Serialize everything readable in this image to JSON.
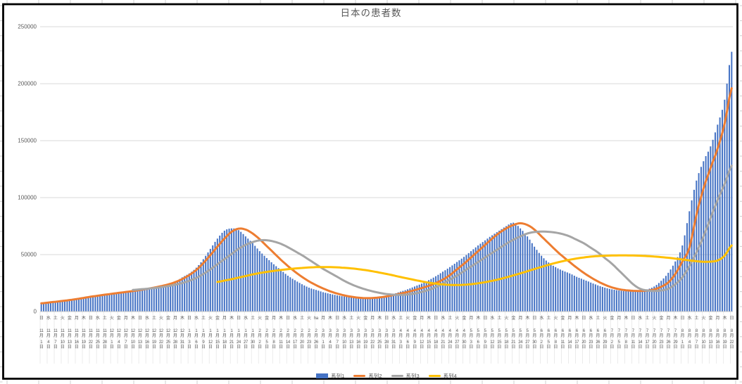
{
  "chart_data": {
    "type": "combo",
    "title": "日本の患者数",
    "grid": "horizontal",
    "legend_position": "bottom",
    "y_axis": {
      "min": 0,
      "max": 250000,
      "step": 50000,
      "tick_labels": [
        "0",
        "50000",
        "100000",
        "150000",
        "200000",
        "250000"
      ]
    },
    "x_axis": {
      "note_interval_days": 3,
      "month_suffix": "月",
      "day_suffix": "日",
      "labels": [
        [
          "日",
          "11",
          "1"
        ],
        [
          "水",
          "11",
          "4"
        ],
        [
          "土",
          "11",
          "7"
        ],
        [
          "火",
          "11",
          "10"
        ],
        [
          "金",
          "11",
          "13"
        ],
        [
          "月",
          "11",
          "16"
        ],
        [
          "木",
          "11",
          "19"
        ],
        [
          "日",
          "11",
          "22"
        ],
        [
          "水",
          "11",
          "25"
        ],
        [
          "土",
          "11",
          "28"
        ],
        [
          "火",
          "12",
          "1"
        ],
        [
          "金",
          "12",
          "4"
        ],
        [
          "月",
          "12",
          "7"
        ],
        [
          "木",
          "12",
          "10"
        ],
        [
          "日",
          "12",
          "13"
        ],
        [
          "水",
          "12",
          "16"
        ],
        [
          "土",
          "12",
          "19"
        ],
        [
          "火",
          "12",
          "22"
        ],
        [
          "金",
          "12",
          "25"
        ],
        [
          "月",
          "12",
          "28"
        ],
        [
          "木",
          "12",
          "31"
        ],
        [
          "日",
          "1",
          "3"
        ],
        [
          "水",
          "1",
          "6"
        ],
        [
          "土",
          "1",
          "9"
        ],
        [
          "火",
          "1",
          "12"
        ],
        [
          "金",
          "1",
          "15"
        ],
        [
          "月",
          "1",
          "18"
        ],
        [
          "木",
          "1",
          "21"
        ],
        [
          "日",
          "1",
          "24"
        ],
        [
          "水",
          "1",
          "27"
        ],
        [
          "土",
          "1",
          "30"
        ],
        [
          "火",
          "2",
          "2"
        ],
        [
          "金",
          "2",
          "5"
        ],
        [
          "月",
          "2",
          "8"
        ],
        [
          "木",
          "2",
          "11"
        ],
        [
          "日",
          "2",
          "14"
        ],
        [
          "水",
          "2",
          "17"
        ],
        [
          "土",
          "2",
          "20"
        ],
        [
          "火",
          "2",
          "23"
        ],
        [
          "ha",
          "2",
          "26"
        ],
        [
          "月",
          "3",
          "1"
        ],
        [
          "木",
          "3",
          "4"
        ],
        [
          "日",
          "3",
          "7"
        ],
        [
          "水",
          "3",
          "10"
        ],
        [
          "土",
          "3",
          "13"
        ],
        [
          "火",
          "3",
          "16"
        ],
        [
          "金",
          "3",
          "19"
        ],
        [
          "月",
          "3",
          "22"
        ],
        [
          "木",
          "3",
          "25"
        ],
        [
          "日",
          "3",
          "28"
        ],
        [
          "水",
          "3",
          "31"
        ],
        [
          "土",
          "4",
          "3"
        ],
        [
          "火",
          "4",
          "6"
        ],
        [
          "金",
          "4",
          "9"
        ],
        [
          "月",
          "4",
          "12"
        ],
        [
          "木",
          "4",
          "15"
        ],
        [
          "日",
          "4",
          "18"
        ],
        [
          "水",
          "4",
          "21"
        ],
        [
          "土",
          "4",
          "24"
        ],
        [
          "火",
          "4",
          "27"
        ],
        [
          "金",
          "4",
          "30"
        ],
        [
          "月",
          "5",
          "3"
        ],
        [
          "木",
          "5",
          "6"
        ],
        [
          "日",
          "5",
          "9"
        ],
        [
          "水",
          "5",
          "12"
        ],
        [
          "土",
          "5",
          "15"
        ],
        [
          "火",
          "5",
          "18"
        ],
        [
          "金",
          "5",
          "21"
        ],
        [
          "月",
          "5",
          "24"
        ],
        [
          "木",
          "5",
          "27"
        ],
        [
          "日",
          "5",
          "30"
        ],
        [
          "水",
          "6",
          "2"
        ],
        [
          "土",
          "6",
          "5"
        ],
        [
          "火",
          "6",
          "8"
        ],
        [
          "金",
          "6",
          "11"
        ],
        [
          "月",
          "6",
          "14"
        ],
        [
          "木",
          "6",
          "17"
        ],
        [
          "日",
          "6",
          "20"
        ],
        [
          "水",
          "6",
          "23"
        ],
        [
          "土",
          "6",
          "26"
        ],
        [
          "火",
          "6",
          "29"
        ],
        [
          "金",
          "7",
          "2"
        ],
        [
          "月",
          "7",
          "5"
        ],
        [
          "木",
          "7",
          "8"
        ],
        [
          "日",
          "7",
          "11"
        ],
        [
          "水",
          "7",
          "14"
        ],
        [
          "土",
          "7",
          "17"
        ],
        [
          "火",
          "7",
          "20"
        ],
        [
          "金",
          "7",
          "23"
        ],
        [
          "月",
          "7",
          "26"
        ],
        [
          "木",
          "7",
          "29"
        ],
        [
          "日",
          "8",
          "1"
        ],
        [
          "水",
          "8",
          "4"
        ],
        [
          "土",
          "8",
          "7"
        ],
        [
          "火",
          "8",
          "10"
        ],
        [
          "金",
          "8",
          "13"
        ],
        [
          "月",
          "8",
          "16"
        ],
        [
          "木",
          "8",
          "19"
        ],
        [
          "日",
          "8",
          "22"
        ]
      ]
    },
    "series": [
      {
        "name": "系列1",
        "type": "bar",
        "color": "#4472C4",
        "values": [
          7000,
          7600,
          8300,
          9000,
          9800,
          10700,
          11700,
          12800,
          13700,
          14600,
          15500,
          16300,
          17100,
          18000,
          19000,
          20000,
          21000,
          22200,
          23600,
          26000,
          30000,
          33500,
          38500,
          46000,
          55000,
          64000,
          71000,
          73000,
          71500,
          66000,
          60000,
          53000,
          47000,
          41500,
          36500,
          31500,
          27500,
          24000,
          21000,
          19000,
          17000,
          15500,
          14200,
          13200,
          12600,
          12100,
          12000,
          12400,
          13000,
          14000,
          15500,
          17500,
          19500,
          22000,
          24500,
          27500,
          31000,
          35000,
          39000,
          43500,
          48000,
          53000,
          58000,
          62500,
          67000,
          71000,
          75000,
          78000,
          73000,
          66000,
          57000,
          49000,
          43000,
          39000,
          36000,
          33500,
          30500,
          28000,
          25500,
          23000,
          21000,
          19500,
          18500,
          18000,
          18000,
          18500,
          19500,
          22000,
          27000,
          34000,
          44000,
          58000,
          88000,
          115000,
          132000,
          145000,
          164000,
          186000,
          228000
        ]
      },
      {
        "name": "系列2",
        "type": "line",
        "color": "#ED7D31",
        "values": [
          7200,
          7900,
          8600,
          9300,
          10100,
          11000,
          12000,
          13000,
          13900,
          14800,
          15600,
          16400,
          17200,
          18000,
          18900,
          19900,
          21000,
          22300,
          23800,
          25800,
          28500,
          32000,
          36500,
          42500,
          49500,
          57000,
          64000,
          70000,
          72800,
          72000,
          68500,
          63500,
          57500,
          51500,
          45500,
          40000,
          35000,
          30500,
          26500,
          23200,
          20300,
          17800,
          15800,
          14200,
          13000,
          12200,
          11800,
          11900,
          12400,
          13300,
          14500,
          15800,
          17200,
          18800,
          20600,
          22600,
          25000,
          28000,
          32000,
          37000,
          42000,
          47500,
          53000,
          58500,
          64000,
          69000,
          73000,
          76000,
          77500,
          76000,
          72000,
          66000,
          60000,
          54000,
          48500,
          43500,
          38500,
          34000,
          30000,
          26500,
          23500,
          21200,
          19600,
          18700,
          18200,
          18100,
          18400,
          19300,
          21800,
          25500,
          33000,
          44000,
          56000,
          85000,
          108000,
          126000,
          143000,
          165000,
          196000
        ]
      },
      {
        "name": "系列3",
        "type": "line",
        "color": "#A5A5A5",
        "values": [
          null,
          null,
          null,
          null,
          null,
          null,
          null,
          null,
          null,
          null,
          null,
          null,
          null,
          19000,
          19500,
          20000,
          20600,
          21400,
          22400,
          23600,
          25000,
          27000,
          29500,
          33000,
          37000,
          41500,
          46000,
          50500,
          55000,
          58500,
          61000,
          62500,
          62600,
          61500,
          59500,
          56500,
          53000,
          49500,
          45500,
          41500,
          37500,
          34000,
          30500,
          27000,
          24000,
          21500,
          19500,
          17800,
          16400,
          15400,
          14800,
          14600,
          15000,
          15800,
          17200,
          19000,
          21500,
          24500,
          28000,
          31500,
          35500,
          39500,
          43500,
          47500,
          51500,
          55500,
          59500,
          63000,
          66000,
          68500,
          69800,
          70200,
          70000,
          69300,
          68000,
          66000,
          63000,
          60000,
          56000,
          52000,
          47000,
          42000,
          36000,
          30000,
          24000,
          20000,
          18500,
          18000,
          18500,
          20000,
          24000,
          30000,
          40000,
          52000,
          66000,
          82000,
          98000,
          112000,
          128000
        ]
      },
      {
        "name": "系列4",
        "type": "line",
        "color": "#FFC000",
        "values": [
          null,
          null,
          null,
          null,
          null,
          null,
          null,
          null,
          null,
          null,
          null,
          null,
          null,
          null,
          null,
          null,
          null,
          null,
          null,
          null,
          null,
          null,
          null,
          null,
          null,
          26000,
          27200,
          28400,
          29800,
          31200,
          32600,
          33800,
          34800,
          35700,
          36500,
          37200,
          37800,
          38300,
          38700,
          39000,
          39100,
          39000,
          38800,
          38400,
          37900,
          37200,
          36400,
          35400,
          34200,
          33000,
          31700,
          30300,
          29000,
          27700,
          26500,
          25400,
          24500,
          23800,
          23400,
          23300,
          23500,
          24000,
          24800,
          25800,
          27000,
          28400,
          30000,
          31700,
          33500,
          35400,
          37300,
          39200,
          41000,
          42700,
          44200,
          45500,
          46600,
          47500,
          48200,
          48700,
          49000,
          49200,
          49300,
          49300,
          49200,
          49000,
          48700,
          48300,
          47800,
          47200,
          46500,
          45700,
          44900,
          44200,
          43700,
          43800,
          44800,
          49000,
          58000
        ]
      }
    ],
    "legend": {
      "items": [
        "系列1",
        "系列2",
        "系列3",
        "系列4"
      ]
    }
  },
  "colors": {
    "text": "#595959",
    "gridline": "#D9D9D9",
    "axis_line": "#C9C9C9",
    "chart_border": "#000000",
    "sheet_tick": "#CFCFCF"
  }
}
